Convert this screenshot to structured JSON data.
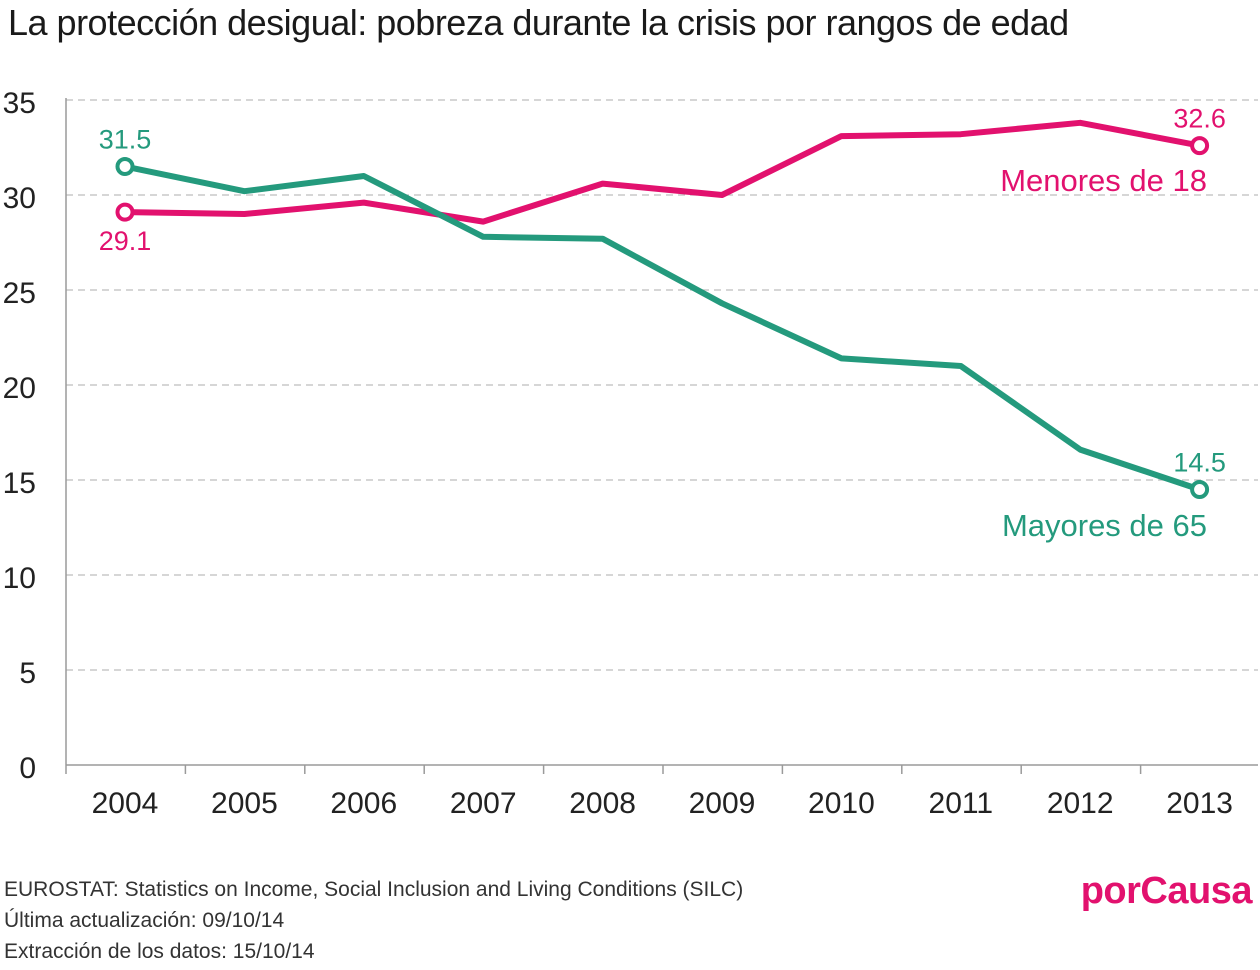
{
  "title": "La protección desigual: pobreza durante la crisis por rangos de edad",
  "chart_data": {
    "type": "line",
    "title": "La protección desigual: pobreza durante la crisis por rangos de edad",
    "x": [
      "2004",
      "2005",
      "2006",
      "2007",
      "2008",
      "2009",
      "2010",
      "2011",
      "2012",
      "2013"
    ],
    "ylim": [
      0,
      35
    ],
    "yticks": [
      0,
      5,
      10,
      15,
      20,
      25,
      30,
      35
    ],
    "grid": "horizontal-dashed",
    "series": [
      {
        "name": "Menores de  18",
        "color": "#e2116e",
        "values": [
          29.1,
          29.0,
          29.6,
          28.6,
          30.6,
          30.0,
          33.1,
          33.2,
          33.8,
          32.6
        ],
        "start_label": "29.1",
        "end_label": "32.6"
      },
      {
        "name": "Mayores de 65",
        "color": "#249a7d",
        "values": [
          31.5,
          30.2,
          31.0,
          27.8,
          27.7,
          24.3,
          21.4,
          21.0,
          16.6,
          14.5
        ],
        "start_label": "31.5",
        "end_label": "14.5"
      }
    ]
  },
  "footer": {
    "source": "EUROSTAT: Statistics on Income, Social Inclusion and Living Conditions (SILC)",
    "updated": "Última actualización: 09/10/14",
    "extracted": "Extracción de los datos: 15/10/14"
  },
  "logo": "porCausa"
}
